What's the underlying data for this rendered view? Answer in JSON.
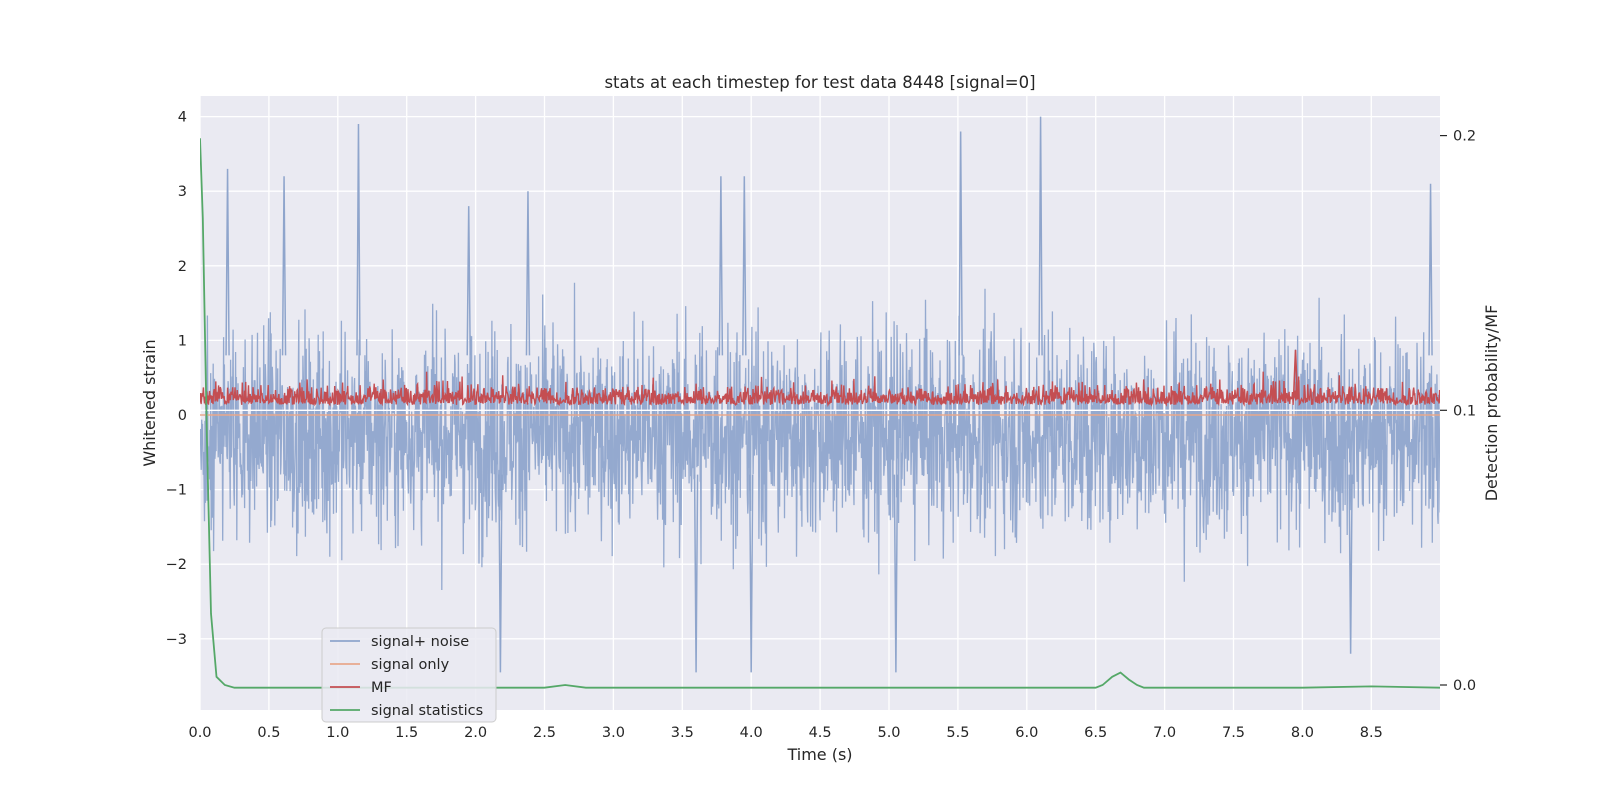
{
  "chart_data": {
    "type": "line",
    "title": "stats at each timestep for test data 8448 [signal=0]",
    "xlabel": "Time (s)",
    "ylabel": "Whitened strain",
    "y2label": "Detection probability/MF",
    "xlim": [
      0.0,
      9.0
    ],
    "ylim": [
      -3.8,
      4.3
    ],
    "y2lim": [
      -0.01,
      0.21
    ],
    "x_ticks": [
      "0.0",
      "0.5",
      "1.0",
      "1.5",
      "2.0",
      "2.5",
      "3.0",
      "3.5",
      "4.0",
      "4.5",
      "5.0",
      "5.5",
      "6.0",
      "6.5",
      "7.0",
      "7.5",
      "8.0",
      "8.5"
    ],
    "y_ticks": [
      "−3",
      "−2",
      "−1",
      "0",
      "1",
      "2",
      "3",
      "4"
    ],
    "y2_ticks": [
      "0.0",
      "0.1",
      "0.2"
    ],
    "grid": true,
    "legend_position": "lower-left",
    "series": [
      {
        "name": "signal+ noise",
        "axis": "left",
        "color": "#8fa5cc",
        "style": "dense noise, roughly symmetric about -0.3, peaks up to about 4.0 and down to about -3.5",
        "envelope_upper": 2.3,
        "envelope_lower": -2.2,
        "spikes": [
          {
            "x": 0.2,
            "y": 3.3
          },
          {
            "x": 0.61,
            "y": 3.2
          },
          {
            "x": 1.15,
            "y": 3.9
          },
          {
            "x": 1.95,
            "y": 2.8
          },
          {
            "x": 2.38,
            "y": 3.0
          },
          {
            "x": 3.78,
            "y": 3.2
          },
          {
            "x": 3.95,
            "y": 3.2
          },
          {
            "x": 5.52,
            "y": 3.8
          },
          {
            "x": 6.1,
            "y": 4.0
          },
          {
            "x": 8.93,
            "y": 3.1
          },
          {
            "x": 3.6,
            "y": -3.45
          },
          {
            "x": 4.0,
            "y": -3.45
          },
          {
            "x": 5.05,
            "y": -3.45
          },
          {
            "x": 8.35,
            "y": -3.2
          },
          {
            "x": 2.18,
            "y": -3.45
          }
        ]
      },
      {
        "name": "signal only",
        "axis": "left",
        "color": "#e8a88c",
        "constant": 0.0
      },
      {
        "name": "MF",
        "axis": "right",
        "color": "#c44e52",
        "baseline": 0.1,
        "envelope_upper": 0.115,
        "peak": {
          "x": 7.95,
          "y": 0.122
        }
      },
      {
        "name": "signal statistics",
        "axis": "right",
        "color": "#55a868",
        "x": [
          0.0,
          0.02,
          0.05,
          0.08,
          0.12,
          0.18,
          0.25,
          0.5,
          1.0,
          1.5,
          2.0,
          2.5,
          2.65,
          2.8,
          3.0,
          4.0,
          4.5,
          5.0,
          6.0,
          6.5,
          6.55,
          6.62,
          6.68,
          6.74,
          6.8,
          6.85,
          7.0,
          8.0,
          8.5,
          9.0
        ],
        "y": [
          0.199,
          0.17,
          0.09,
          0.026,
          0.003,
          0.0,
          -0.001,
          -0.001,
          -0.001,
          -0.001,
          -0.001,
          -0.001,
          0.0,
          -0.001,
          -0.001,
          -0.001,
          -0.001,
          -0.001,
          -0.001,
          -0.001,
          0.0,
          0.003,
          0.0045,
          0.002,
          0.0,
          -0.001,
          -0.001,
          -0.001,
          -0.0005,
          -0.001
        ]
      }
    ]
  }
}
